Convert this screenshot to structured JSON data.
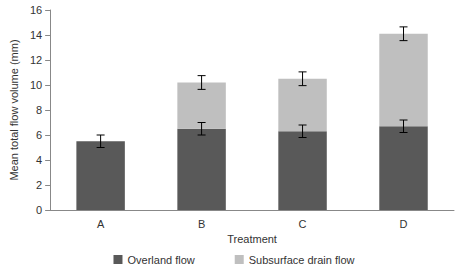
{
  "chart_data": {
    "type": "bar",
    "stacked": true,
    "x_label": "Treatment",
    "y_label": "Mean total flow volume (mm)",
    "categories": [
      "A",
      "B",
      "C",
      "D"
    ],
    "series": [
      {
        "name": "Overland flow",
        "color": "#595959",
        "values": [
          5.5,
          6.5,
          6.3,
          6.7
        ],
        "errors": [
          0.5,
          0.5,
          0.5,
          0.5
        ]
      },
      {
        "name": "Subsurface drain flow",
        "color": "#bfbfbf",
        "values": [
          null,
          3.7,
          4.2,
          7.4
        ],
        "errors": [
          null,
          0.55,
          0.55,
          0.55
        ]
      }
    ],
    "ylim": [
      0,
      16
    ],
    "yticks": [
      0,
      2,
      4,
      6,
      8,
      10,
      12,
      14,
      16
    ],
    "grid": false,
    "legend": "bottom"
  }
}
